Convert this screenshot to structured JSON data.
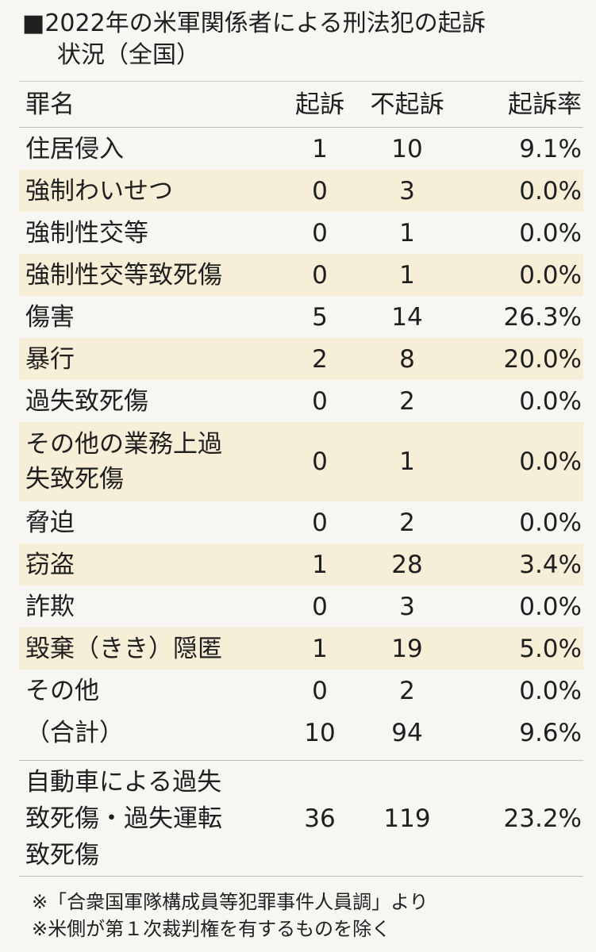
{
  "title": {
    "line1": "■2022年の米軍関係者による刑法犯の起訴",
    "line2": "状況（全国）"
  },
  "table": {
    "headers": {
      "crime": "罪名",
      "prosecuted": "起訴",
      "not_prosecuted": "不起訴",
      "rate": "起訴率"
    },
    "rows": [
      {
        "crime": "住居侵入",
        "prosecuted": "1",
        "not_prosecuted": "10",
        "rate": "9.1%"
      },
      {
        "crime": "強制わいせつ",
        "prosecuted": "0",
        "not_prosecuted": "3",
        "rate": "0.0%"
      },
      {
        "crime": "強制性交等",
        "prosecuted": "0",
        "not_prosecuted": "1",
        "rate": "0.0%"
      },
      {
        "crime": "強制性交等致死傷",
        "prosecuted": "0",
        "not_prosecuted": "1",
        "rate": "0.0%"
      },
      {
        "crime": "傷害",
        "prosecuted": "5",
        "not_prosecuted": "14",
        "rate": "26.3%"
      },
      {
        "crime": "暴行",
        "prosecuted": "2",
        "not_prosecuted": "8",
        "rate": "20.0%"
      },
      {
        "crime": "過失致死傷",
        "prosecuted": "0",
        "not_prosecuted": "2",
        "rate": "0.0%"
      },
      {
        "crime_line1": "その他の業務上過",
        "crime_line2": "失致死傷",
        "prosecuted": "0",
        "not_prosecuted": "1",
        "rate": "0.0%"
      },
      {
        "crime": "脅迫",
        "prosecuted": "0",
        "not_prosecuted": "2",
        "rate": "0.0%"
      },
      {
        "crime": "窃盗",
        "prosecuted": "1",
        "not_prosecuted": "28",
        "rate": "3.4%"
      },
      {
        "crime": "詐欺",
        "prosecuted": "0",
        "not_prosecuted": "3",
        "rate": "0.0%"
      },
      {
        "crime": "毀棄（きき）隠匿",
        "prosecuted": "1",
        "not_prosecuted": "19",
        "rate": "5.0%"
      },
      {
        "crime": "その他",
        "prosecuted": "0",
        "not_prosecuted": "2",
        "rate": "0.0%"
      }
    ],
    "total": {
      "crime": "（合計）",
      "prosecuted": "10",
      "not_prosecuted": "94",
      "rate": "9.6%"
    },
    "special": {
      "crime_line1": "自動車による過失",
      "crime_line2": "致死傷・過失運転",
      "crime_line3": "致死傷",
      "prosecuted": "36",
      "not_prosecuted": "119",
      "rate": "23.2%"
    }
  },
  "notes": {
    "line1": "※「合衆国軍隊構成員等犯罪事件人員調」より",
    "line2": "※米側が第１次裁判権を有するものを除く"
  },
  "colors": {
    "background": "#f7f6f3",
    "shaded_row": "#f6eed6",
    "text": "#1f1f1f"
  }
}
